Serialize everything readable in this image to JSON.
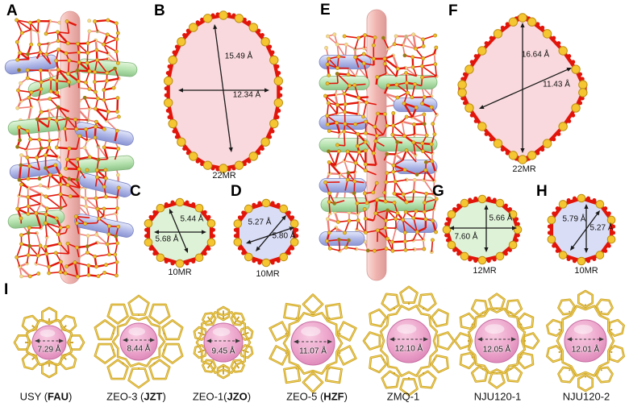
{
  "panels": {
    "A": {
      "letter": "A"
    },
    "B": {
      "letter": "B",
      "mr": "22MR",
      "dims": [
        "15.49 Å",
        "12.34 Å"
      ]
    },
    "C": {
      "letter": "C",
      "mr": "10MR",
      "dims": [
        "5.44 Å",
        "5.68 Å"
      ]
    },
    "D": {
      "letter": "D",
      "mr": "10MR",
      "dims": [
        "5.27 Å",
        "5.80 Å"
      ]
    },
    "E": {
      "letter": "E"
    },
    "F": {
      "letter": "F",
      "mr": "22MR",
      "dims": [
        "16.64 Å",
        "11.43 Å"
      ]
    },
    "G": {
      "letter": "G",
      "mr": "12MR",
      "dims": [
        "5.66 Å",
        "7.60 Å"
      ]
    },
    "H": {
      "letter": "H",
      "mr": "10MR",
      "dims": [
        "5.79 Å",
        "5.27 Å"
      ]
    },
    "I": {
      "letter": "I"
    }
  },
  "materials": [
    {
      "pre": "USY (",
      "bold": "FAU",
      "post": ")",
      "diameter": "7.29 Å"
    },
    {
      "pre": "ZEO-3 (",
      "bold": "JZT",
      "post": ")",
      "diameter": "8.44 Å"
    },
    {
      "pre": "ZEO-1(",
      "bold": "JZO",
      "post": ")",
      "diameter": "9.45 Å"
    },
    {
      "pre": "ZEO-5 (",
      "bold": "HZF",
      "post": ")",
      "diameter": "11.07 Å"
    },
    {
      "pre": "ZMQ-1",
      "bold": "",
      "post": "",
      "diameter": "12.10 Å"
    },
    {
      "pre": "NJU120-1",
      "bold": "",
      "post": "",
      "diameter": "12.05 Å"
    },
    {
      "pre": "NJU120-2",
      "bold": "",
      "post": "",
      "diameter": "12.01 Å"
    }
  ],
  "colors": {
    "pore_pink": "#f9d9dd",
    "pore_green": "#def2d7",
    "pore_lavender": "#d9ddf6",
    "atom_yellow": "#f5c632",
    "atom_yellow_edge": "#bb8e12",
    "oxygen_red": "#e2150b",
    "rod_pink": "#f1b6b1",
    "capsule_green": "#b7e3b0",
    "capsule_lavender": "#b2bae8",
    "framework_gold": "#c89c1c",
    "framework_gold_light": "#f3d765",
    "sphere_pink": "#eca4cb",
    "arrow_black": "#1a1a1a"
  }
}
